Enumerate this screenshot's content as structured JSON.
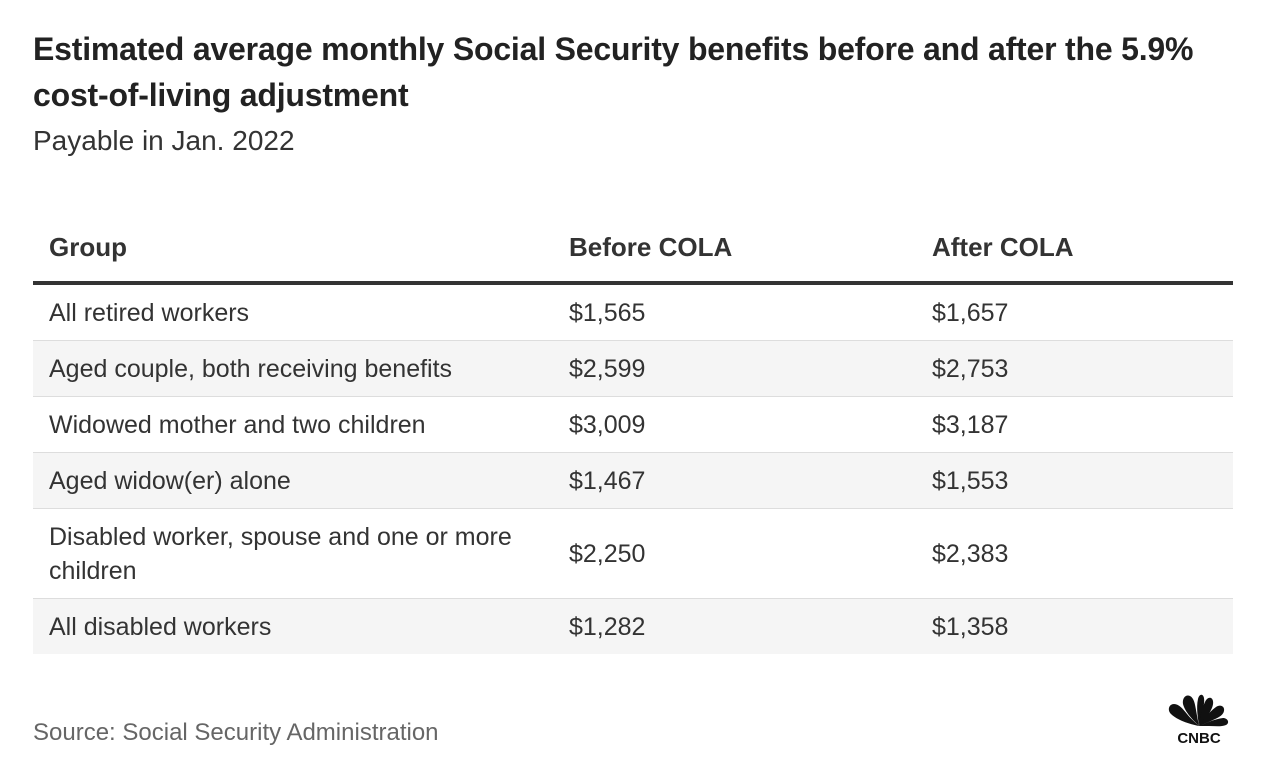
{
  "header": {
    "title": "Estimated average monthly Social Security benefits before and after the 5.9% cost-of-living adjustment",
    "subtitle": "Payable in Jan. 2022"
  },
  "chart_data": {
    "type": "table",
    "title": "Estimated average monthly Social Security benefits before and after the 5.9% cost-of-living adjustment",
    "subtitle": "Payable in Jan. 2022",
    "columns": [
      "Group",
      "Before COLA",
      "After COLA"
    ],
    "rows": [
      [
        "All retired workers",
        "$1,565",
        "$1,657"
      ],
      [
        "Aged couple, both receiving benefits",
        "$2,599",
        "$2,753"
      ],
      [
        "Widowed mother and two children",
        "$3,009",
        "$3,187"
      ],
      [
        "Aged widow(er) alone",
        "$1,467",
        "$1,553"
      ],
      [
        "Disabled worker, spouse and one or more children",
        "$2,250",
        "$2,383"
      ],
      [
        "All disabled workers",
        "$1,282",
        "$1,358"
      ]
    ],
    "source": "Source: Social Security Administration"
  },
  "footer": {
    "source": "Source: Social Security Administration",
    "logo_text": "CNBC",
    "logo_icon": "peacock-icon"
  },
  "colors": {
    "text": "#333333",
    "row_stripe": "#f5f5f5",
    "rule": "#333333",
    "source": "#666666"
  }
}
